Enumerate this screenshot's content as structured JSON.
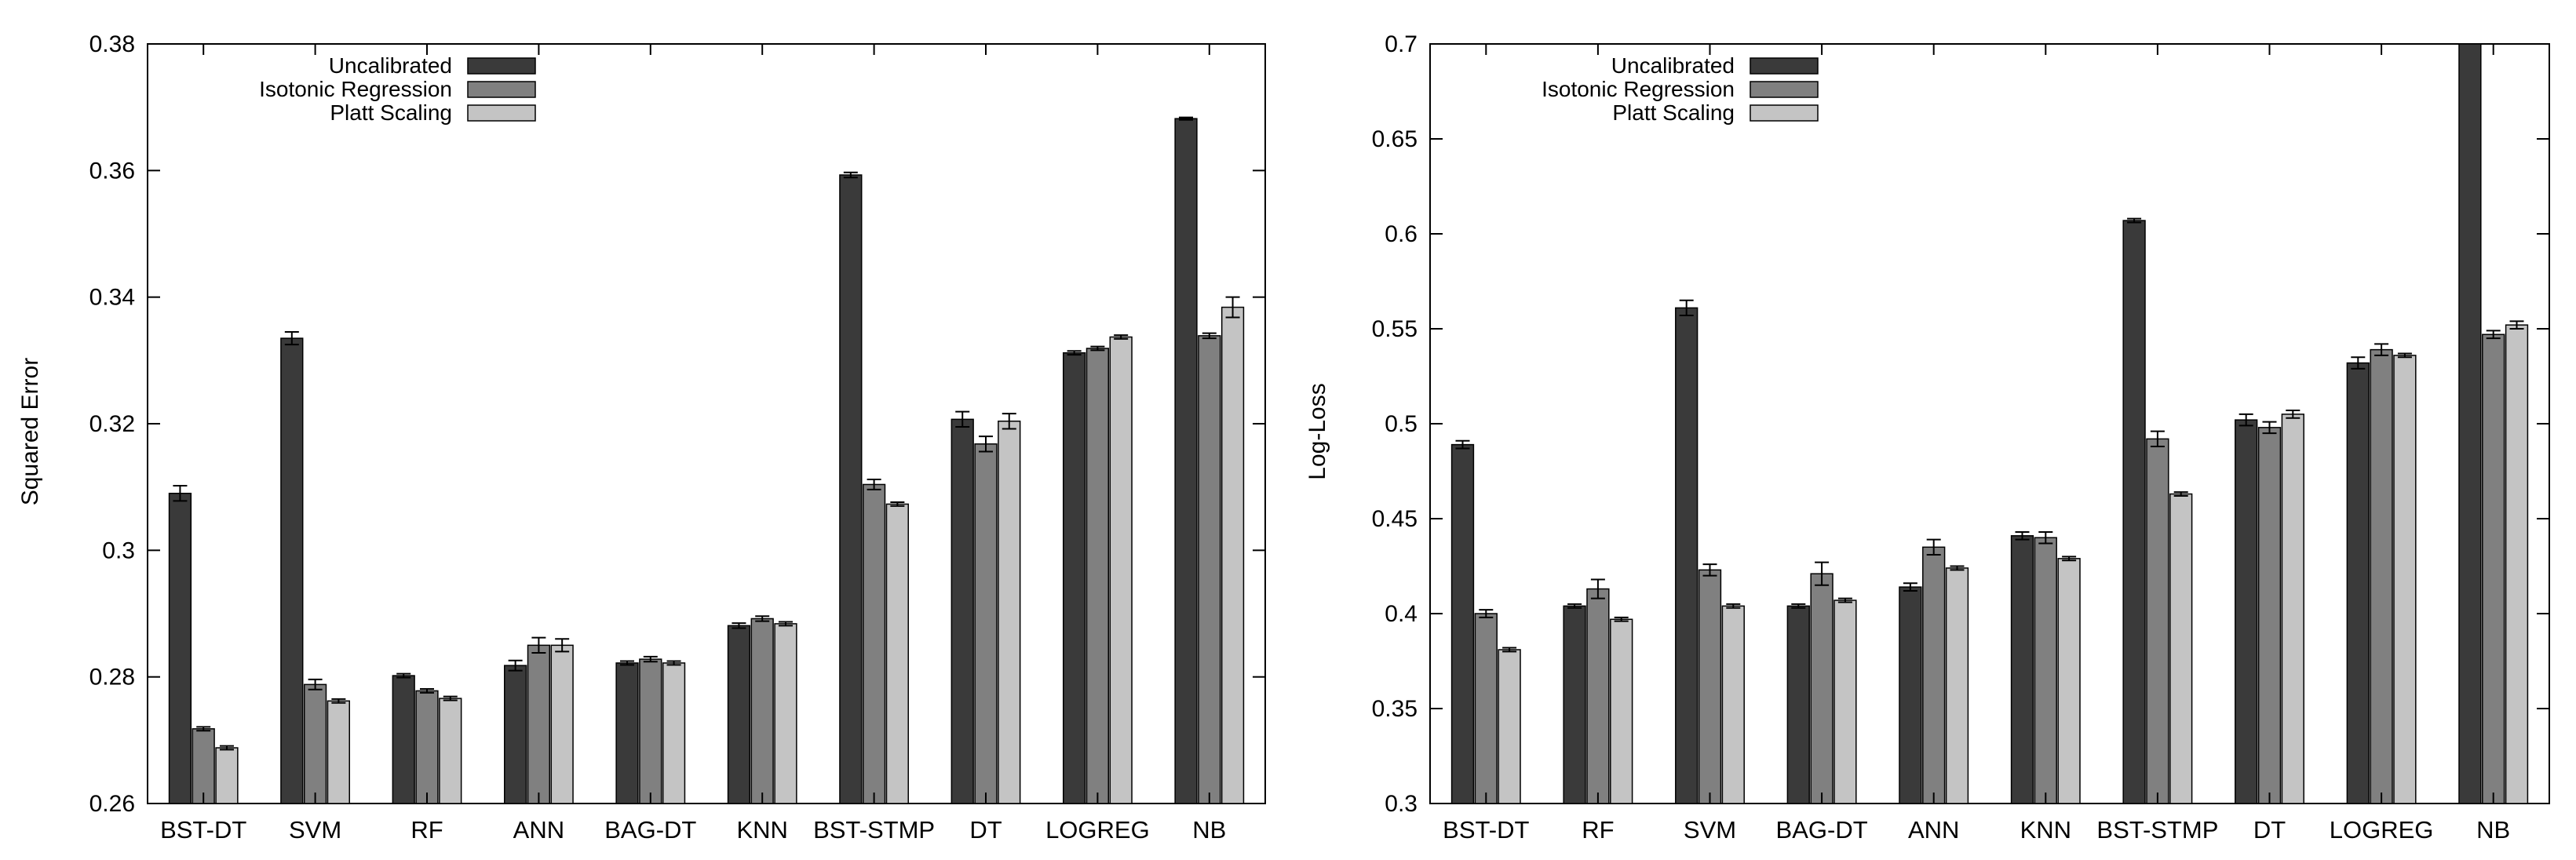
{
  "colors": {
    "uncalibrated": "#3a3a3a",
    "isotonic": "#808080",
    "platt": "#c4c4c4",
    "stroke": "#000000"
  },
  "chart_data": [
    {
      "type": "bar",
      "ylabel": "Squared Error",
      "xlabel": "",
      "title": "",
      "ylim": [
        0.26,
        0.38
      ],
      "yticks": [
        0.26,
        0.28,
        0.3,
        0.32,
        0.34,
        0.36,
        0.38
      ],
      "ytick_labels": [
        "0.26",
        "0.28",
        "0.3",
        "0.32",
        "0.34",
        "0.36",
        "0.38"
      ],
      "legend_position": "top-left",
      "grid": false,
      "categories": [
        "BST-DT",
        "SVM",
        "RF",
        "ANN",
        "BAG-DT",
        "KNN",
        "BST-STMP",
        "DT",
        "LOGREG",
        "NB"
      ],
      "series": [
        {
          "name": "Uncalibrated",
          "values": [
            0.309,
            0.3335,
            0.2802,
            0.2818,
            0.2822,
            0.2881,
            0.3593,
            0.3207,
            0.3312,
            0.3682
          ],
          "errors": [
            0.0012,
            0.001,
            0.0003,
            0.0008,
            0.0003,
            0.0004,
            0.0004,
            0.0012,
            0.0003,
            0.0002
          ]
        },
        {
          "name": "Isotonic Regression",
          "values": [
            0.2718,
            0.2788,
            0.2778,
            0.285,
            0.2828,
            0.2892,
            0.3104,
            0.3168,
            0.3319,
            0.3339
          ],
          "errors": [
            0.0003,
            0.0008,
            0.0003,
            0.0012,
            0.0004,
            0.0004,
            0.0008,
            0.0012,
            0.0003,
            0.0004
          ]
        },
        {
          "name": "Platt Scaling",
          "values": [
            0.2688,
            0.2762,
            0.2766,
            0.285,
            0.2822,
            0.2884,
            0.3073,
            0.3204,
            0.3337,
            0.3384
          ],
          "errors": [
            0.0003,
            0.0003,
            0.0003,
            0.001,
            0.0003,
            0.0003,
            0.0003,
            0.0012,
            0.0003,
            0.0016
          ]
        }
      ]
    },
    {
      "type": "bar",
      "ylabel": "Log-Loss",
      "xlabel": "",
      "title": "",
      "ylim": [
        0.3,
        0.7
      ],
      "yticks": [
        0.3,
        0.35,
        0.4,
        0.45,
        0.5,
        0.55,
        0.6,
        0.65,
        0.7
      ],
      "ytick_labels": [
        "0.3",
        "0.35",
        "0.4",
        "0.45",
        "0.5",
        "0.55",
        "0.6",
        "0.65",
        "0.7"
      ],
      "legend_position": "top-left",
      "grid": false,
      "categories": [
        "BST-DT",
        "RF",
        "SVM",
        "BAG-DT",
        "ANN",
        "KNN",
        "BST-STMP",
        "DT",
        "LOGREG",
        "NB"
      ],
      "series": [
        {
          "name": "Uncalibrated",
          "values": [
            0.489,
            0.404,
            0.561,
            0.404,
            0.414,
            0.441,
            0.607,
            0.502,
            0.532,
            0.7
          ],
          "errors": [
            0.002,
            0.001,
            0.004,
            0.001,
            0.002,
            0.002,
            0.001,
            0.003,
            0.003,
            0
          ]
        },
        {
          "name": "Isotonic Regression",
          "values": [
            0.4,
            0.413,
            0.423,
            0.421,
            0.435,
            0.44,
            0.492,
            0.498,
            0.539,
            0.547
          ],
          "errors": [
            0.002,
            0.005,
            0.003,
            0.006,
            0.004,
            0.003,
            0.004,
            0.003,
            0.003,
            0.002
          ]
        },
        {
          "name": "Platt Scaling",
          "values": [
            0.381,
            0.397,
            0.404,
            0.407,
            0.424,
            0.429,
            0.463,
            0.505,
            0.536,
            0.552
          ],
          "errors": [
            0.001,
            0.001,
            0.001,
            0.001,
            0.001,
            0.001,
            0.001,
            0.002,
            0.001,
            0.002
          ]
        }
      ]
    }
  ]
}
